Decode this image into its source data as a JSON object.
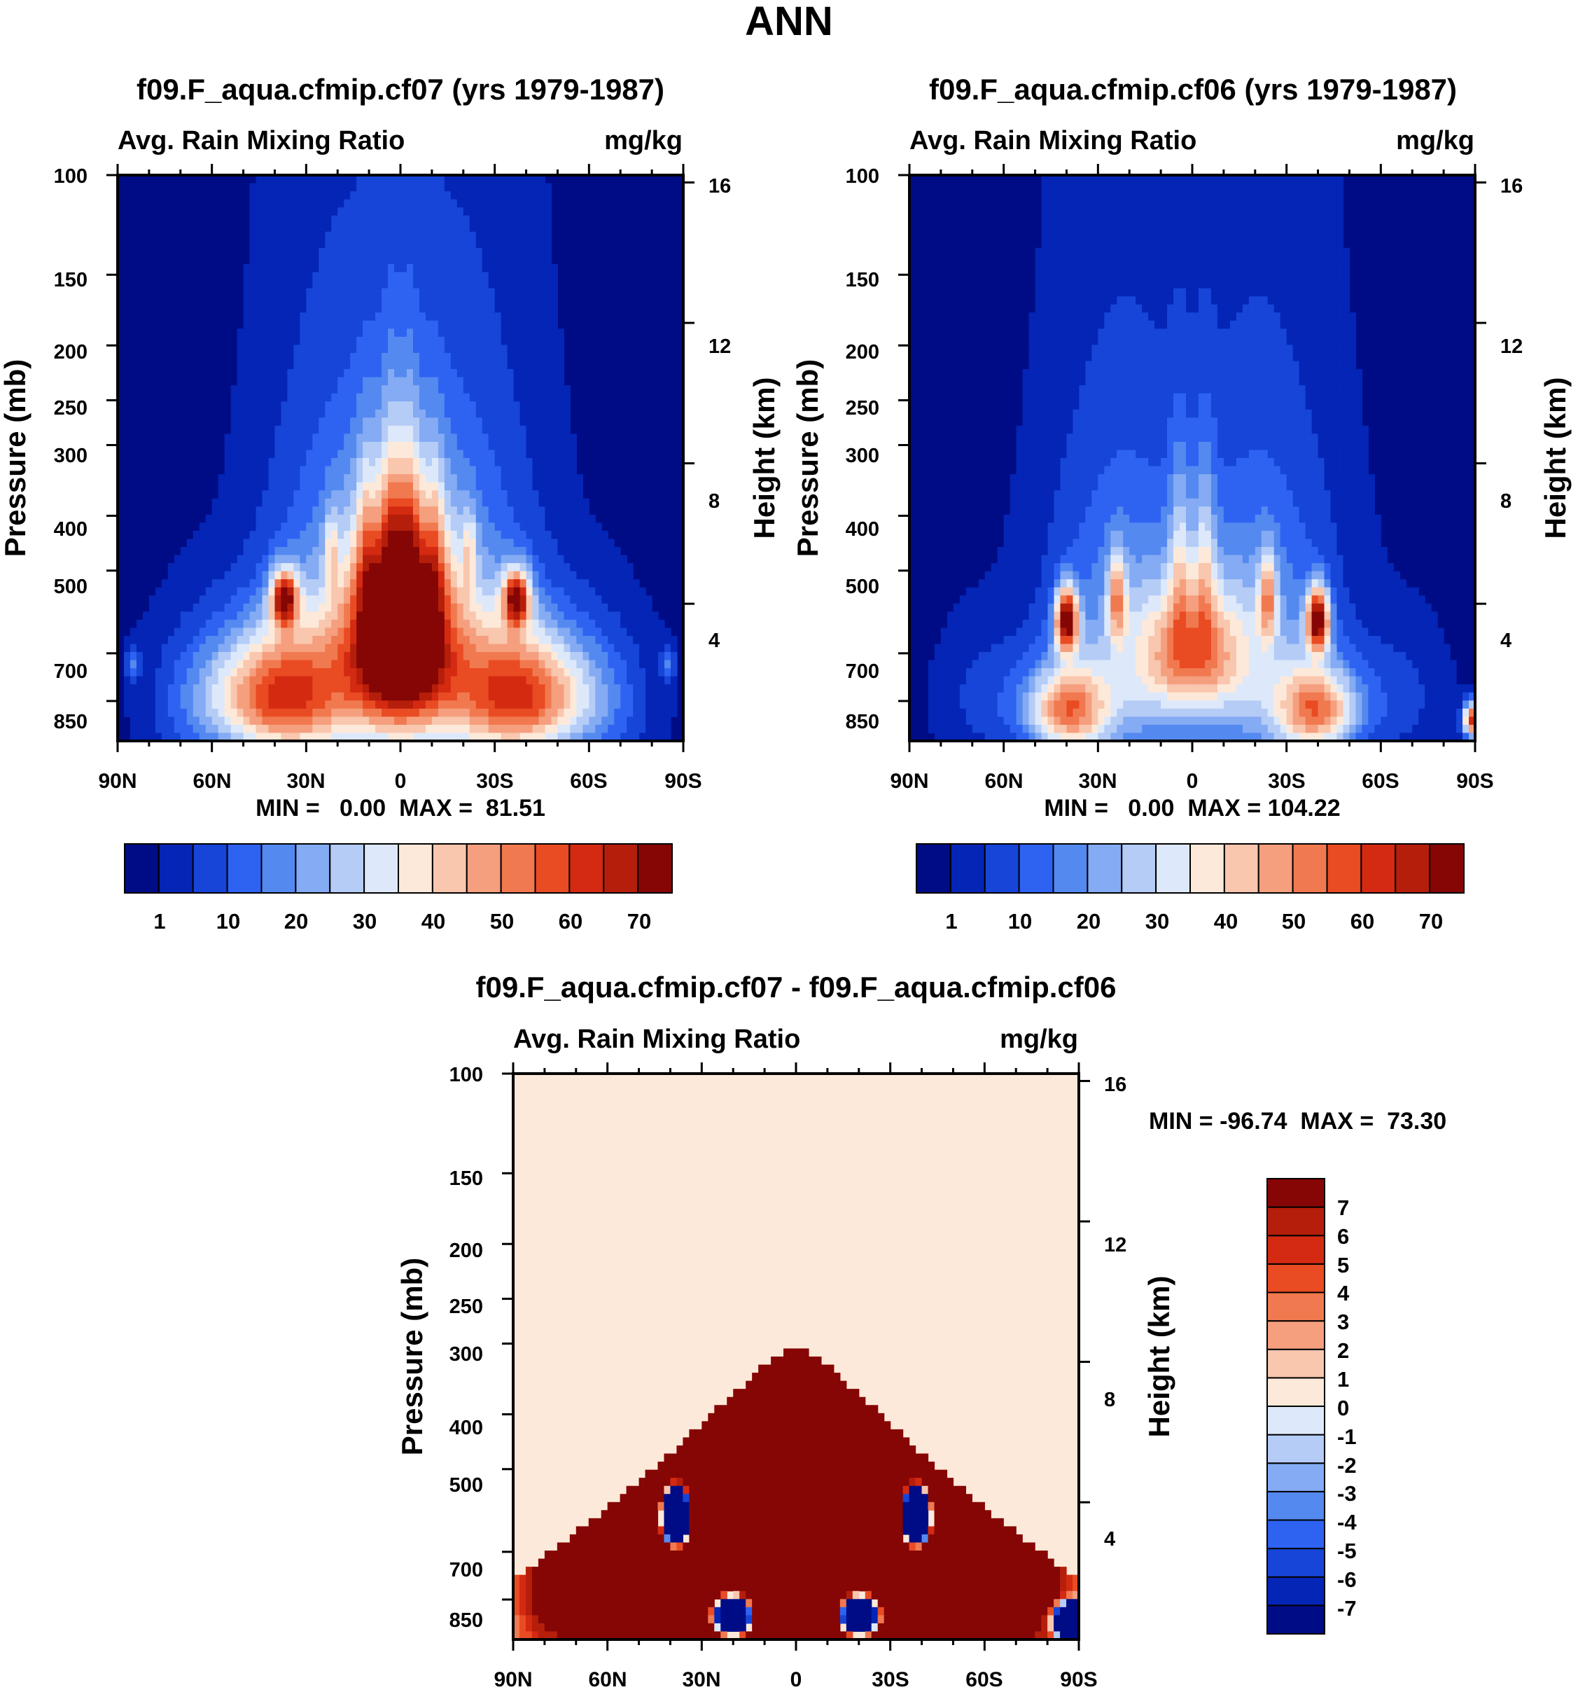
{
  "page_title": "ANN",
  "colors": {
    "seq_palette": [
      "#000c86",
      "#0425b5",
      "#1645d8",
      "#2e63f2",
      "#5489f0",
      "#84abf3",
      "#b5ccf6",
      "#dde9fa",
      "#fde9d9",
      "#f9c6ae",
      "#f59f7e",
      "#f1794f",
      "#e94b23",
      "#d42a11",
      "#b51e0a",
      "#850605"
    ],
    "diff_palette": [
      "#000c86",
      "#0425b5",
      "#1645d8",
      "#2e63f2",
      "#5489f0",
      "#84abf3",
      "#b5ccf6",
      "#dde9fa",
      "#fde9d9",
      "#f9c6ae",
      "#f59f7e",
      "#f1794f",
      "#e94b23",
      "#d42a11",
      "#b51e0a",
      "#850605"
    ],
    "uniform_high": "#000c86",
    "uniform_diff": "#fde9d9"
  },
  "chart_data": [
    {
      "type": "heatmap",
      "title": "f09.F_aqua.cfmip.cf07 (yrs 1979-1987)",
      "left_label": "Avg. Rain Mixing Ratio",
      "right_label": "mg/kg",
      "ylabel": "Pressure (mb)",
      "ylabel_right": "Height (km)",
      "xticks": [
        "90N",
        "60N",
        "30N",
        "0",
        "30S",
        "60S",
        "90S"
      ],
      "xtick_values": [
        90,
        60,
        30,
        0,
        -30,
        -60,
        -90
      ],
      "yticks": [
        "100",
        "150",
        "200",
        "250",
        "300",
        "400",
        "500",
        "700",
        "850"
      ],
      "ytick_values": [
        100,
        150,
        200,
        250,
        300,
        400,
        500,
        700,
        850
      ],
      "ylim": [
        100,
        1000
      ],
      "height_ticks": [
        "16",
        "12",
        "8",
        "4"
      ],
      "height_values": [
        16,
        12,
        8,
        4
      ],
      "stats": "MIN =   0.00  MAX =  81.51",
      "colorbar_labels": [
        "1",
        "10",
        "20",
        "30",
        "40",
        "50",
        "60",
        "70"
      ],
      "levels": [
        1,
        5,
        10,
        15,
        20,
        25,
        30,
        35,
        40,
        45,
        50,
        55,
        60,
        65,
        70
      ],
      "features": [
        {
          "lat": 0,
          "p": 650,
          "amp": 82,
          "sx": 11,
          "sp": 190
        },
        {
          "lat": -40,
          "p": 830,
          "amp": 52,
          "sx": 15,
          "sp": 150
        },
        {
          "lat": 40,
          "p": 830,
          "amp": 52,
          "sx": 15,
          "sp": 150
        },
        {
          "lat": -37,
          "p": 560,
          "amp": 58,
          "sx": 3,
          "sp": 45
        },
        {
          "lat": 37,
          "p": 560,
          "amp": 58,
          "sx": 3,
          "sp": 45
        },
        {
          "lat": -20,
          "p": 720,
          "amp": 24,
          "sx": 16,
          "sp": 330
        },
        {
          "lat": 20,
          "p": 720,
          "amp": 24,
          "sx": 16,
          "sp": 330
        },
        {
          "lat": -11,
          "p": 470,
          "amp": 14,
          "sx": 2,
          "sp": 130
        },
        {
          "lat": 11,
          "p": 470,
          "amp": 14,
          "sx": 2,
          "sp": 130
        },
        {
          "lat": -3,
          "p": 430,
          "amp": 16,
          "sx": 2.5,
          "sp": 150
        },
        {
          "lat": 3,
          "p": 430,
          "amp": 16,
          "sx": 2.5,
          "sp": 150
        },
        {
          "lat": -22,
          "p": 460,
          "amp": 18,
          "sx": 1.5,
          "sp": 50
        },
        {
          "lat": 22,
          "p": 460,
          "amp": 18,
          "sx": 1.5,
          "sp": 50
        },
        {
          "lat": -85,
          "p": 730,
          "amp": 14,
          "sx": 1.5,
          "sp": 40
        },
        {
          "lat": 85,
          "p": 730,
          "amp": 14,
          "sx": 1.5,
          "sp": 40
        },
        {
          "lat": -65,
          "p": 860,
          "amp": 8,
          "sx": 10,
          "sp": 170
        },
        {
          "lat": 65,
          "p": 860,
          "amp": 8,
          "sx": 10,
          "sp": 170
        }
      ]
    },
    {
      "type": "heatmap",
      "title": "f09.F_aqua.cfmip.cf06 (yrs 1979-1987)",
      "left_label": "Avg. Rain Mixing Ratio",
      "right_label": "mg/kg",
      "ylabel": "Pressure (mb)",
      "ylabel_right": "Height (km)",
      "xticks": [
        "90N",
        "60N",
        "30N",
        "0",
        "30S",
        "60S",
        "90S"
      ],
      "xtick_values": [
        90,
        60,
        30,
        0,
        -30,
        -60,
        -90
      ],
      "yticks": [
        "100",
        "150",
        "200",
        "250",
        "300",
        "400",
        "500",
        "700",
        "850"
      ],
      "ytick_values": [
        100,
        150,
        200,
        250,
        300,
        400,
        500,
        700,
        850
      ],
      "ylim": [
        100,
        1000
      ],
      "height_ticks": [
        "16",
        "12",
        "8",
        "4"
      ],
      "height_values": [
        16,
        12,
        8,
        4
      ],
      "stats": "MIN =   0.00  MAX = 104.22",
      "colorbar_labels": [
        "1",
        "10",
        "20",
        "30",
        "40",
        "50",
        "60",
        "70"
      ],
      "levels": [
        1,
        5,
        10,
        15,
        20,
        25,
        30,
        35,
        40,
        45,
        50,
        55,
        60,
        65,
        70
      ],
      "features": [
        {
          "lat": 0,
          "p": 700,
          "amp": 38,
          "sx": 12,
          "sp": 130
        },
        {
          "lat": -40,
          "p": 610,
          "amp": 70,
          "sx": 2.5,
          "sp": 55
        },
        {
          "lat": 40,
          "p": 610,
          "amp": 70,
          "sx": 2.5,
          "sp": 55
        },
        {
          "lat": -40,
          "p": 880,
          "amp": 45,
          "sx": 9,
          "sp": 110
        },
        {
          "lat": 40,
          "p": 880,
          "amp": 45,
          "sx": 9,
          "sp": 110
        },
        {
          "lat": -24,
          "p": 560,
          "amp": 32,
          "sx": 2,
          "sp": 70
        },
        {
          "lat": 24,
          "p": 560,
          "amp": 32,
          "sx": 2,
          "sp": 70
        },
        {
          "lat": -22,
          "p": 720,
          "amp": 22,
          "sx": 16,
          "sp": 320
        },
        {
          "lat": 22,
          "p": 720,
          "amp": 22,
          "sx": 16,
          "sp": 320
        },
        {
          "lat": -4,
          "p": 480,
          "amp": 18,
          "sx": 2.5,
          "sp": 140
        },
        {
          "lat": 4,
          "p": 480,
          "amp": 18,
          "sx": 2.5,
          "sp": 140
        },
        {
          "lat": -89,
          "p": 920,
          "amp": 62,
          "sx": 2,
          "sp": 45
        },
        {
          "lat": -65,
          "p": 840,
          "amp": 7,
          "sx": 10,
          "sp": 150
        },
        {
          "lat": 65,
          "p": 840,
          "amp": 7,
          "sx": 10,
          "sp": 150
        }
      ]
    },
    {
      "type": "heatmap",
      "title": "f09.F_aqua.cfmip.cf07 - f09.F_aqua.cfmip.cf06",
      "left_label": "Avg. Rain Mixing Ratio",
      "right_label": "mg/kg",
      "ylabel": "Pressure (mb)",
      "ylabel_right": "Height (km)",
      "xticks": [
        "90N",
        "60N",
        "30N",
        "0",
        "30S",
        "60S",
        "90S"
      ],
      "xtick_values": [
        90,
        60,
        30,
        0,
        -30,
        -60,
        -90
      ],
      "yticks": [
        "100",
        "150",
        "200",
        "250",
        "300",
        "400",
        "500",
        "700",
        "850"
      ],
      "ytick_values": [
        100,
        150,
        200,
        250,
        300,
        400,
        500,
        700,
        850
      ],
      "ylim": [
        100,
        1000
      ],
      "height_ticks": [
        "16",
        "12",
        "8",
        "4"
      ],
      "height_values": [
        16,
        12,
        8,
        4
      ],
      "stats": "MIN = -96.74  MAX =  73.30",
      "colorbar_labels": [
        "7",
        "6",
        "5",
        "4",
        "3",
        "2",
        "1",
        "0",
        "-1",
        "-2",
        "-3",
        "-4",
        "-5",
        "-6",
        "-7"
      ],
      "levels": [
        -7,
        -6,
        -5,
        -4,
        -3,
        -2,
        -1,
        0,
        1,
        2,
        3,
        4,
        5,
        6,
        7
      ],
      "features": [
        {
          "lat": 0,
          "p": 620,
          "amp": 60,
          "sx": 12,
          "sp": 380
        },
        {
          "lat": -30,
          "p": 720,
          "amp": 40,
          "sx": 22,
          "sp": 380
        },
        {
          "lat": 30,
          "p": 720,
          "amp": 40,
          "sx": 22,
          "sp": 380
        },
        {
          "lat": -80,
          "p": 800,
          "amp": 6,
          "sx": 9,
          "sp": 200
        },
        {
          "lat": 80,
          "p": 800,
          "amp": 6,
          "sx": 9,
          "sp": 200
        },
        {
          "lat": -38,
          "p": 610,
          "amp": -90,
          "sx": 3.5,
          "sp": 55
        },
        {
          "lat": 38,
          "p": 610,
          "amp": -90,
          "sx": 3.5,
          "sp": 55
        },
        {
          "lat": -19,
          "p": 900,
          "amp": -70,
          "sx": 7,
          "sp": 80
        },
        {
          "lat": 19,
          "p": 900,
          "amp": -70,
          "sx": 7,
          "sp": 80
        },
        {
          "lat": -4,
          "p": 450,
          "amp": -30,
          "sx": 1,
          "sp": 30
        },
        {
          "lat": -88,
          "p": 930,
          "amp": -90,
          "sx": 3,
          "sp": 35
        }
      ]
    }
  ]
}
